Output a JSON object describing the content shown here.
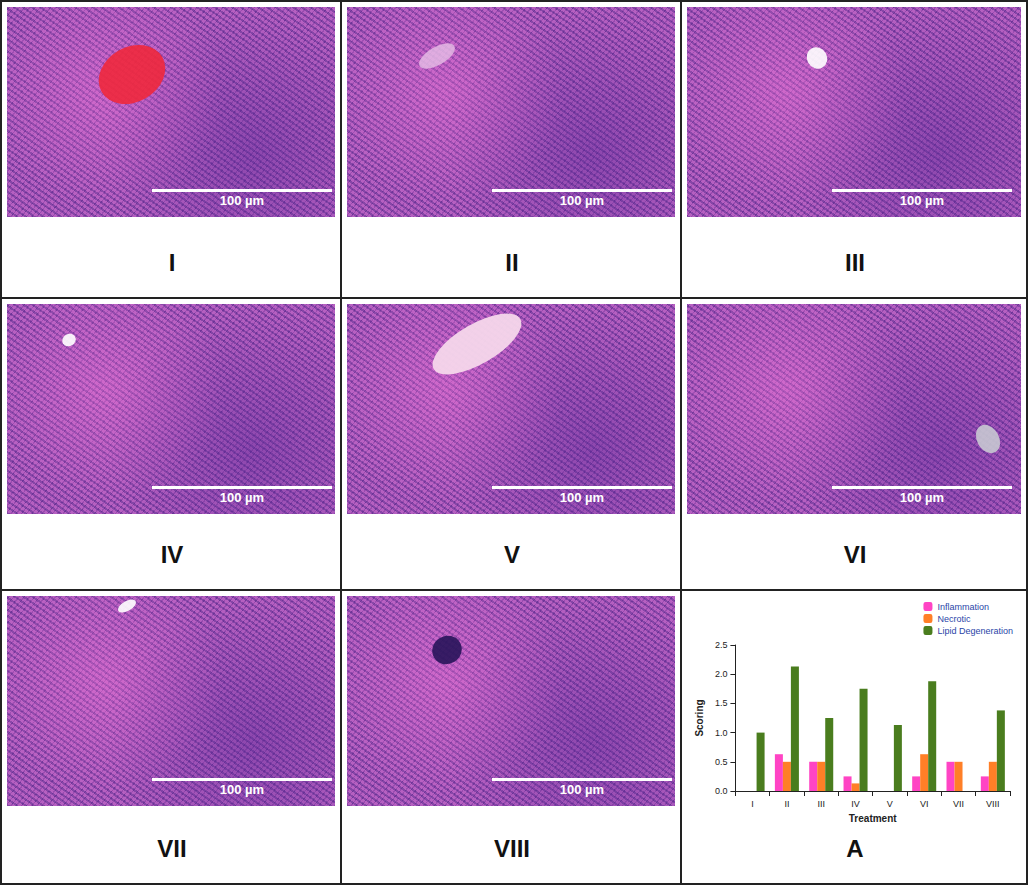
{
  "panels": [
    {
      "label": "I",
      "scale_bar": "100 µm"
    },
    {
      "label": "II",
      "scale_bar": "100 µm"
    },
    {
      "label": "III",
      "scale_bar": "100 µm"
    },
    {
      "label": "IV",
      "scale_bar": "100 µm"
    },
    {
      "label": "V",
      "scale_bar": "100 µm"
    },
    {
      "label": "VI",
      "scale_bar": "100 µm"
    },
    {
      "label": "VII",
      "scale_bar": "100 µm"
    },
    {
      "label": "VIII",
      "scale_bar": "100 µm"
    }
  ],
  "chart_label": "A",
  "chart_data": {
    "type": "bar",
    "x_label": "Treatment",
    "y_label": "Scoring",
    "categories": [
      "I",
      "II",
      "III",
      "IV",
      "V",
      "VI",
      "VII",
      "VIII"
    ],
    "series": [
      {
        "name": "Inflammation",
        "color": "#ff44c4",
        "values": [
          0,
          0.63,
          0.5,
          0.25,
          0,
          0.25,
          0.5,
          0.25
        ]
      },
      {
        "name": "Necrotic",
        "color": "#ff7f27",
        "values": [
          0,
          0.5,
          0.5,
          0.13,
          0,
          0.63,
          0.5,
          0.5
        ]
      },
      {
        "name": "Lipid Degeneration",
        "color": "#4a7d1e",
        "values": [
          1.0,
          2.13,
          1.25,
          1.75,
          1.13,
          1.88,
          0,
          1.38
        ]
      }
    ],
    "ylim": [
      0,
      2.5
    ],
    "yticks": [
      {
        "value": 0,
        "label": "0.0"
      },
      0.5,
      {
        "value": 1,
        "label": "1.0"
      },
      1.5,
      {
        "value": 2,
        "label": "2.0"
      },
      2.5
    ],
    "grid": false,
    "legend": "top-right"
  }
}
